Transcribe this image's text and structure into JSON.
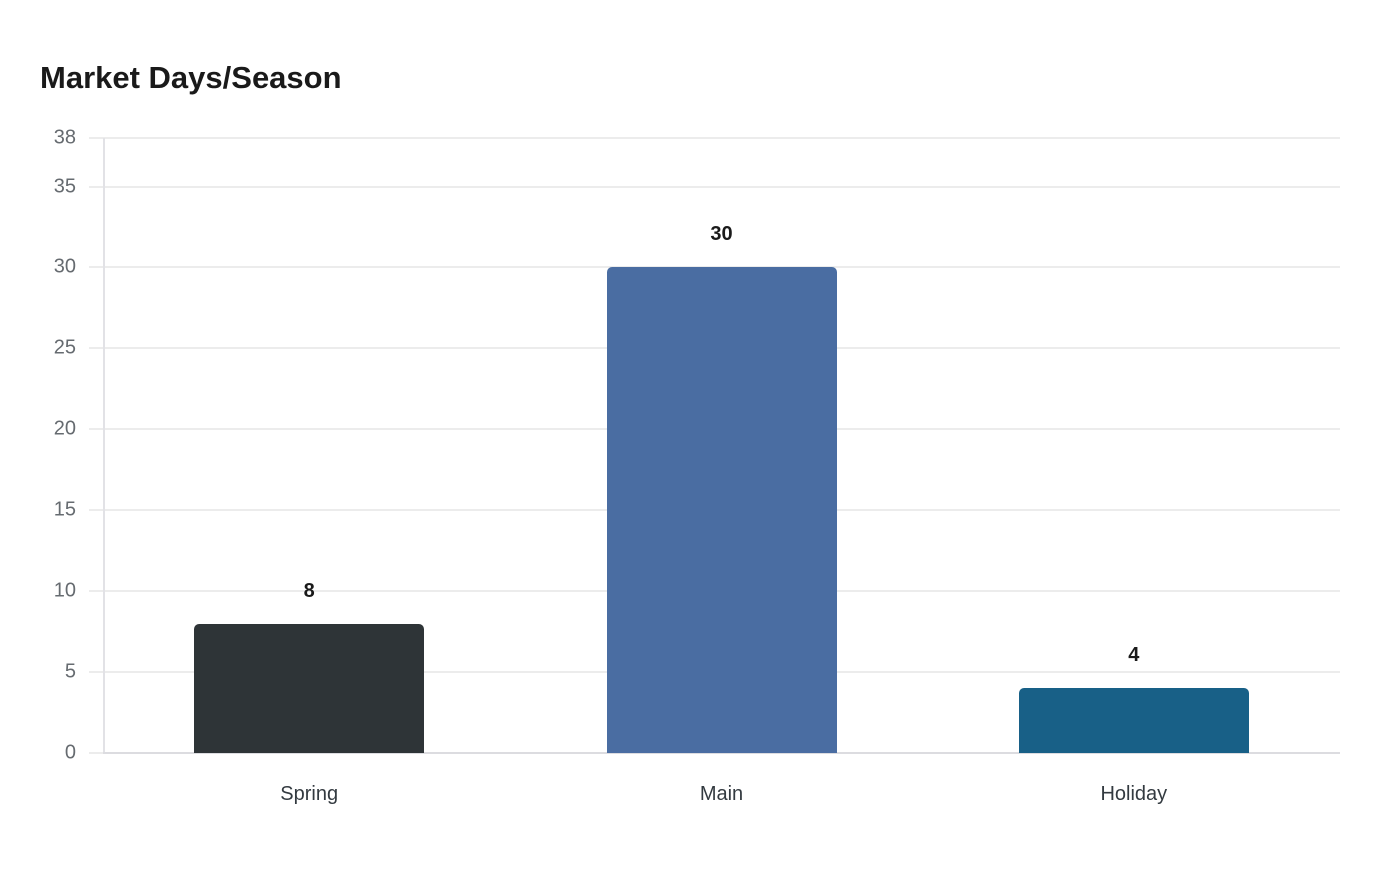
{
  "chart_data": {
    "type": "bar",
    "title": "Market Days/Season",
    "xlabel": "",
    "ylabel": "",
    "categories": [
      "Spring",
      "Main",
      "Holiday"
    ],
    "values": [
      8,
      30,
      4
    ],
    "colors": [
      "#2e3437",
      "#4a6da2",
      "#186087"
    ],
    "ylim": [
      0,
      38
    ],
    "yticks": [
      0,
      5,
      10,
      15,
      20,
      25,
      30,
      35,
      38
    ],
    "grid": true,
    "legend": null,
    "data_labels": [
      "8",
      "30",
      "4"
    ]
  }
}
